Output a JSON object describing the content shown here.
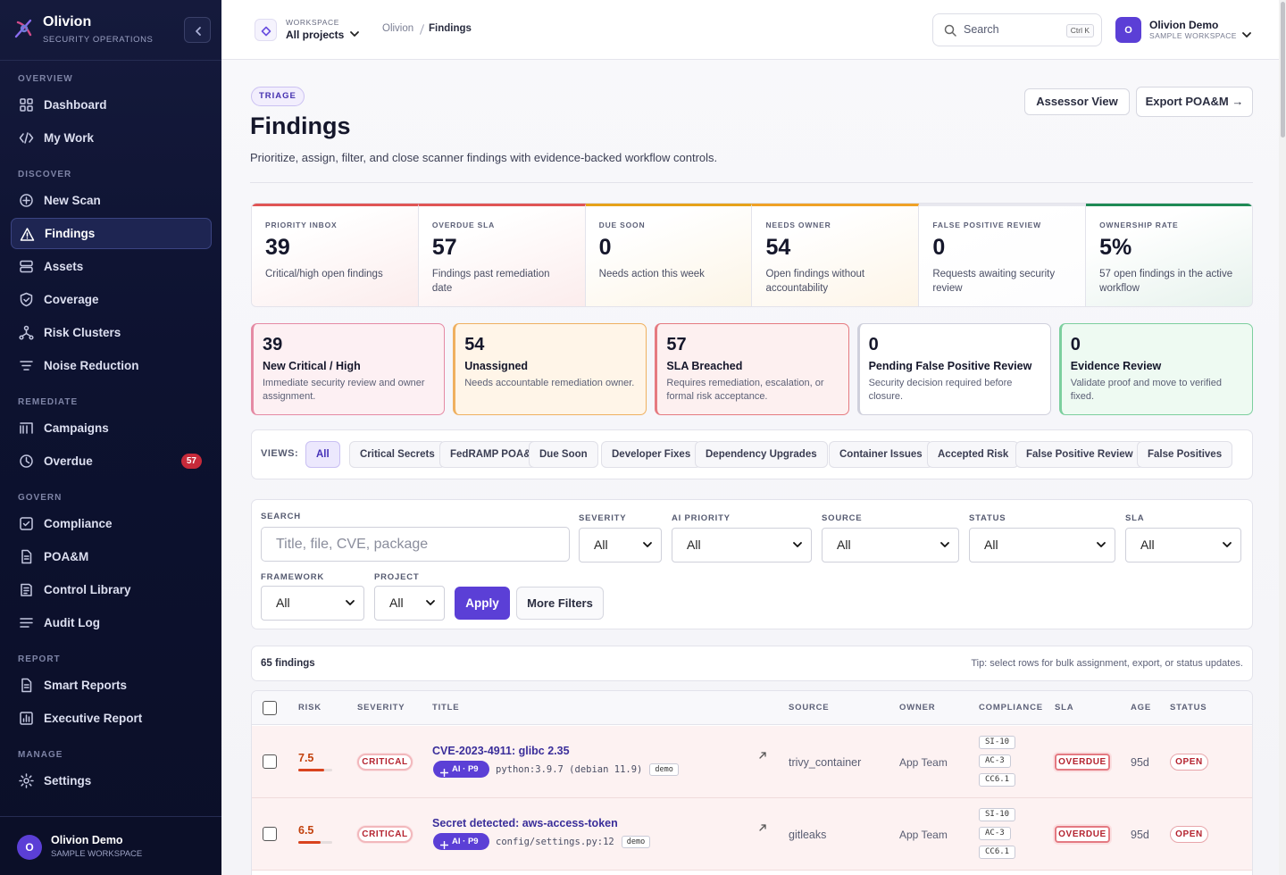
{
  "sidebar": {
    "brand": {
      "name": "Olivion",
      "subtitle": "SECURITY OPERATIONS"
    },
    "sections": [
      {
        "title": "OVERVIEW",
        "items": [
          {
            "label": "Dashboard"
          },
          {
            "label": "My Work"
          }
        ]
      },
      {
        "title": "DISCOVER",
        "items": [
          {
            "label": "New Scan"
          },
          {
            "label": "Findings",
            "active": true
          },
          {
            "label": "Assets"
          },
          {
            "label": "Coverage"
          },
          {
            "label": "Risk Clusters"
          },
          {
            "label": "Noise Reduction"
          }
        ]
      },
      {
        "title": "REMEDIATE",
        "items": [
          {
            "label": "Campaigns"
          },
          {
            "label": "Overdue",
            "badge": "57"
          }
        ]
      },
      {
        "title": "GOVERN",
        "items": [
          {
            "label": "Compliance"
          },
          {
            "label": "POA&M"
          },
          {
            "label": "Control Library"
          },
          {
            "label": "Audit Log"
          }
        ]
      },
      {
        "title": "REPORT",
        "items": [
          {
            "label": "Smart Reports"
          },
          {
            "label": "Executive Report"
          }
        ]
      },
      {
        "title": "MANAGE",
        "items": [
          {
            "label": "Settings"
          }
        ]
      }
    ],
    "user": {
      "initial": "O",
      "name": "Olivion Demo",
      "workspace": "SAMPLE WORKSPACE"
    }
  },
  "topbar": {
    "workspace": {
      "label": "WORKSPACE",
      "value": "All projects"
    },
    "breadcrumb": [
      "Olivion",
      "Findings"
    ],
    "search": {
      "placeholder": "Search",
      "shortcut": "Ctrl K"
    },
    "user": {
      "initial": "O",
      "name": "Olivion Demo",
      "workspace": "SAMPLE WORKSPACE"
    }
  },
  "header": {
    "tag": "TRIAGE",
    "title": "Findings",
    "description": "Prioritize, assign, filter, and close scanner findings with evidence-backed workflow controls.",
    "buttons": [
      "Assessor View",
      "Export POA&M →"
    ]
  },
  "kpis": [
    {
      "label": "PRIORITY INBOX",
      "value": "39",
      "note": "Critical/high open findings",
      "accent": "#e05555"
    },
    {
      "label": "OVERDUE SLA",
      "value": "57",
      "note": "Findings past remediation date",
      "accent": "#e05555"
    },
    {
      "label": "DUE SOON",
      "value": "0",
      "note": "Needs action this week",
      "accent": "#e6a21a"
    },
    {
      "label": "NEEDS OWNER",
      "value": "54",
      "note": "Open findings without accountability",
      "accent": "#efa126"
    },
    {
      "label": "FALSE POSITIVE REVIEW",
      "value": "0",
      "note": "Requests awaiting security review",
      "accent": "#e8e8ef"
    },
    {
      "label": "OWNERSHIP RATE",
      "value": "5%",
      "note": "57 open findings in the active workflow",
      "accent": "#1f8a55"
    }
  ],
  "queues": [
    {
      "value": "39",
      "title": "New Critical / High",
      "note": "Immediate security review and owner assignment.",
      "accent": "#e58aa4",
      "bg": "#fdf0f3"
    },
    {
      "value": "54",
      "title": "Unassigned",
      "note": "Needs accountable remediation owner.",
      "accent": "#efb060",
      "bg": "#fff5e8"
    },
    {
      "value": "57",
      "title": "SLA Breached",
      "note": "Requires remediation, escalation, or formal risk acceptance.",
      "accent": "#e57a80",
      "bg": "#fdf0f0"
    },
    {
      "value": "0",
      "title": "Pending False Positive Review",
      "note": "Security decision required before closure.",
      "accent": "#cfd0dc",
      "bg": "#ffffff"
    },
    {
      "value": "0",
      "title": "Evidence Review",
      "note": "Validate proof and move to verified fixed.",
      "accent": "#7ccf9e",
      "bg": "#eefaf2"
    }
  ],
  "views": {
    "label": "VIEWS:",
    "items": [
      "All",
      "Critical Secrets",
      "FedRAMP POA&M",
      "Due Soon",
      "Developer Fixes",
      "Dependency Upgrades",
      "Container Issues",
      "Accepted Risk",
      "False Positive Review",
      "False Positives"
    ],
    "active": 0
  },
  "filters": {
    "search": {
      "label": "SEARCH",
      "placeholder": "Title, file, CVE, package"
    },
    "selects": [
      {
        "label": "SEVERITY",
        "value": "All"
      },
      {
        "label": "AI PRIORITY",
        "value": "All"
      },
      {
        "label": "SOURCE",
        "value": "All"
      },
      {
        "label": "STATUS",
        "value": "All"
      },
      {
        "label": "SLA",
        "value": "All"
      },
      {
        "label": "FRAMEWORK",
        "value": "All"
      },
      {
        "label": "PROJECT",
        "value": "All"
      }
    ],
    "apply": "Apply",
    "more": "More Filters"
  },
  "results": {
    "count": "65 findings",
    "tip": "Tip: select rows for bulk assignment, export, or status updates."
  },
  "table": {
    "columns": [
      "RISK",
      "SEVERITY",
      "TITLE",
      "SOURCE",
      "OWNER",
      "COMPLIANCE",
      "SLA",
      "AGE",
      "STATUS"
    ],
    "rows": [
      {
        "risk": 7.5,
        "severity": "CRITICAL",
        "title": "CVE-2023-4911: glibc 2.35",
        "ai": "AI · P9",
        "location": "python:3.9.7 (debian 11.9)",
        "env": "demo",
        "source": "trivy_container",
        "owner": "App Team",
        "compliance": [
          "SI-10",
          "AC-3",
          "CC6.1"
        ],
        "sla": "OVERDUE",
        "age": "95d",
        "status": "OPEN"
      },
      {
        "risk": 6.5,
        "severity": "CRITICAL",
        "title": "Secret detected: aws-access-token",
        "ai": "AI · P9",
        "location": "config/settings.py:12",
        "env": "demo",
        "source": "gitleaks",
        "owner": "App Team",
        "compliance": [
          "SI-10",
          "AC-3",
          "CC6.1"
        ],
        "sla": "OVERDUE",
        "age": "95d",
        "status": "OPEN"
      }
    ]
  }
}
